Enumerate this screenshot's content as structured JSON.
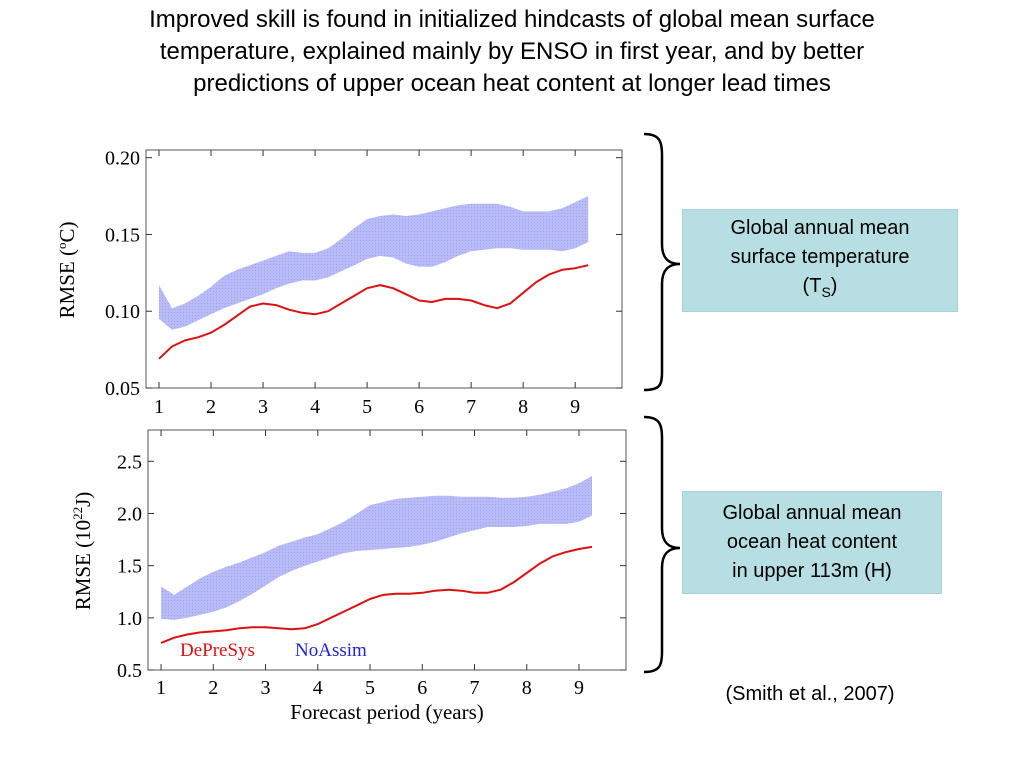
{
  "title": {
    "line1": "Improved skill is found in initialized hindcasts of global mean surface",
    "line2": "temperature, explained mainly by ENSO in first year, and by better",
    "line3": "predictions of upper ocean heat content at longer lead times"
  },
  "annotations": {
    "ts_box": {
      "line1": "Global annual mean",
      "line2": "surface temperature",
      "line3_main": "(T",
      "line3_sub": "S",
      "line3_end": ")"
    },
    "oh_box": {
      "line1": "Global annual mean",
      "line2": "ocean heat content",
      "line3": "in upper 113m (H)"
    },
    "citation": "(Smith et al., 2007)"
  },
  "chart_data": [
    {
      "type": "line",
      "panel": "top",
      "ylabel_main": "RMSE (",
      "ylabel_sup": "o",
      "ylabel_end": "C)",
      "xlabel": "",
      "xlim": [
        0.75,
        9.9
      ],
      "ylim": [
        0.05,
        0.205
      ],
      "xticks": [
        "1",
        "2",
        "3",
        "4",
        "5",
        "6",
        "7",
        "8",
        "9"
      ],
      "yticks": [
        "0.05",
        "0.10",
        "0.15",
        "0.20"
      ],
      "series": [
        {
          "color": "#dd1111",
          "x": [
            1.0,
            1.25,
            1.5,
            1.75,
            2.0,
            2.25,
            2.5,
            2.75,
            3.0,
            3.25,
            3.5,
            3.75,
            4.0,
            4.25,
            4.5,
            4.75,
            5.0,
            5.25,
            5.5,
            5.75,
            6.0,
            6.25,
            6.5,
            6.75,
            7.0,
            7.25,
            7.5,
            7.75,
            8.0,
            8.25,
            8.5,
            8.75,
            9.0,
            9.25
          ],
          "values": [
            0.069,
            0.077,
            0.081,
            0.083,
            0.086,
            0.091,
            0.097,
            0.103,
            0.105,
            0.104,
            0.101,
            0.099,
            0.098,
            0.1,
            0.105,
            0.11,
            0.115,
            0.117,
            0.115,
            0.111,
            0.107,
            0.106,
            0.108,
            0.108,
            0.107,
            0.104,
            0.102,
            0.105,
            0.112,
            0.119,
            0.124,
            0.127,
            0.128,
            0.13
          ]
        }
      ],
      "band": {
        "color": "#aeb0f5",
        "x": [
          1.0,
          1.25,
          1.5,
          1.75,
          2.0,
          2.25,
          2.5,
          2.75,
          3.0,
          3.25,
          3.5,
          3.75,
          4.0,
          4.25,
          4.5,
          4.75,
          5.0,
          5.25,
          5.5,
          5.75,
          6.0,
          6.25,
          6.5,
          6.75,
          7.0,
          7.25,
          7.5,
          7.75,
          8.0,
          8.25,
          8.5,
          8.75,
          9.0,
          9.25
        ],
        "upper": [
          0.117,
          0.102,
          0.105,
          0.11,
          0.116,
          0.123,
          0.127,
          0.13,
          0.133,
          0.136,
          0.139,
          0.138,
          0.138,
          0.141,
          0.147,
          0.154,
          0.16,
          0.162,
          0.163,
          0.162,
          0.163,
          0.165,
          0.167,
          0.169,
          0.17,
          0.17,
          0.17,
          0.168,
          0.165,
          0.165,
          0.165,
          0.167,
          0.171,
          0.175
        ],
        "lower": [
          0.095,
          0.088,
          0.09,
          0.094,
          0.098,
          0.102,
          0.105,
          0.108,
          0.111,
          0.115,
          0.118,
          0.12,
          0.12,
          0.122,
          0.126,
          0.13,
          0.134,
          0.136,
          0.135,
          0.131,
          0.129,
          0.129,
          0.132,
          0.136,
          0.139,
          0.14,
          0.141,
          0.141,
          0.14,
          0.14,
          0.14,
          0.139,
          0.141,
          0.145
        ]
      }
    },
    {
      "type": "line",
      "panel": "bottom",
      "ylabel_main": "RMSE (10",
      "ylabel_sup": "22",
      "ylabel_end": "J)",
      "xlabel": "Forecast period (years)",
      "xlim": [
        0.75,
        9.9
      ],
      "ylim": [
        0.5,
        2.8
      ],
      "xticks": [
        "1",
        "2",
        "3",
        "4",
        "5",
        "6",
        "7",
        "8",
        "9"
      ],
      "yticks": [
        "0.5",
        "1.0",
        "1.5",
        "2.0",
        "2.5"
      ],
      "legend": [
        "DePreSys",
        "NoAssim"
      ],
      "legend_colors": [
        "#dd1111",
        "#2222dd"
      ],
      "series": [
        {
          "name": "DePreSys",
          "color": "#dd1111",
          "x": [
            1.0,
            1.25,
            1.5,
            1.75,
            2.0,
            2.25,
            2.5,
            2.75,
            3.0,
            3.25,
            3.5,
            3.75,
            4.0,
            4.25,
            4.5,
            4.75,
            5.0,
            5.25,
            5.5,
            5.75,
            6.0,
            6.25,
            6.5,
            6.75,
            7.0,
            7.25,
            7.5,
            7.75,
            8.0,
            8.25,
            8.5,
            8.75,
            9.0,
            9.25
          ],
          "values": [
            0.76,
            0.81,
            0.84,
            0.86,
            0.87,
            0.88,
            0.9,
            0.91,
            0.91,
            0.9,
            0.89,
            0.9,
            0.94,
            1.0,
            1.06,
            1.12,
            1.18,
            1.22,
            1.23,
            1.23,
            1.24,
            1.26,
            1.27,
            1.26,
            1.24,
            1.24,
            1.27,
            1.34,
            1.43,
            1.52,
            1.59,
            1.63,
            1.66,
            1.68
          ]
        }
      ],
      "band": {
        "name": "NoAssim",
        "color": "#aeb0f5",
        "x": [
          1.0,
          1.25,
          1.5,
          1.75,
          2.0,
          2.25,
          2.5,
          2.75,
          3.0,
          3.25,
          3.5,
          3.75,
          4.0,
          4.25,
          4.5,
          4.75,
          5.0,
          5.25,
          5.5,
          5.75,
          6.0,
          6.25,
          6.5,
          6.75,
          7.0,
          7.25,
          7.5,
          7.75,
          8.0,
          8.25,
          8.5,
          8.75,
          9.0,
          9.25
        ],
        "upper": [
          1.3,
          1.22,
          1.3,
          1.38,
          1.44,
          1.49,
          1.53,
          1.58,
          1.63,
          1.69,
          1.73,
          1.77,
          1.8,
          1.86,
          1.92,
          2.0,
          2.08,
          2.11,
          2.14,
          2.15,
          2.16,
          2.17,
          2.17,
          2.16,
          2.16,
          2.16,
          2.15,
          2.15,
          2.16,
          2.18,
          2.21,
          2.24,
          2.29,
          2.36
        ],
        "lower": [
          0.99,
          0.98,
          1.0,
          1.03,
          1.06,
          1.1,
          1.16,
          1.23,
          1.31,
          1.39,
          1.45,
          1.5,
          1.54,
          1.58,
          1.62,
          1.64,
          1.65,
          1.66,
          1.67,
          1.68,
          1.7,
          1.73,
          1.77,
          1.81,
          1.84,
          1.87,
          1.87,
          1.87,
          1.88,
          1.9,
          1.9,
          1.9,
          1.92,
          1.98
        ]
      }
    }
  ]
}
